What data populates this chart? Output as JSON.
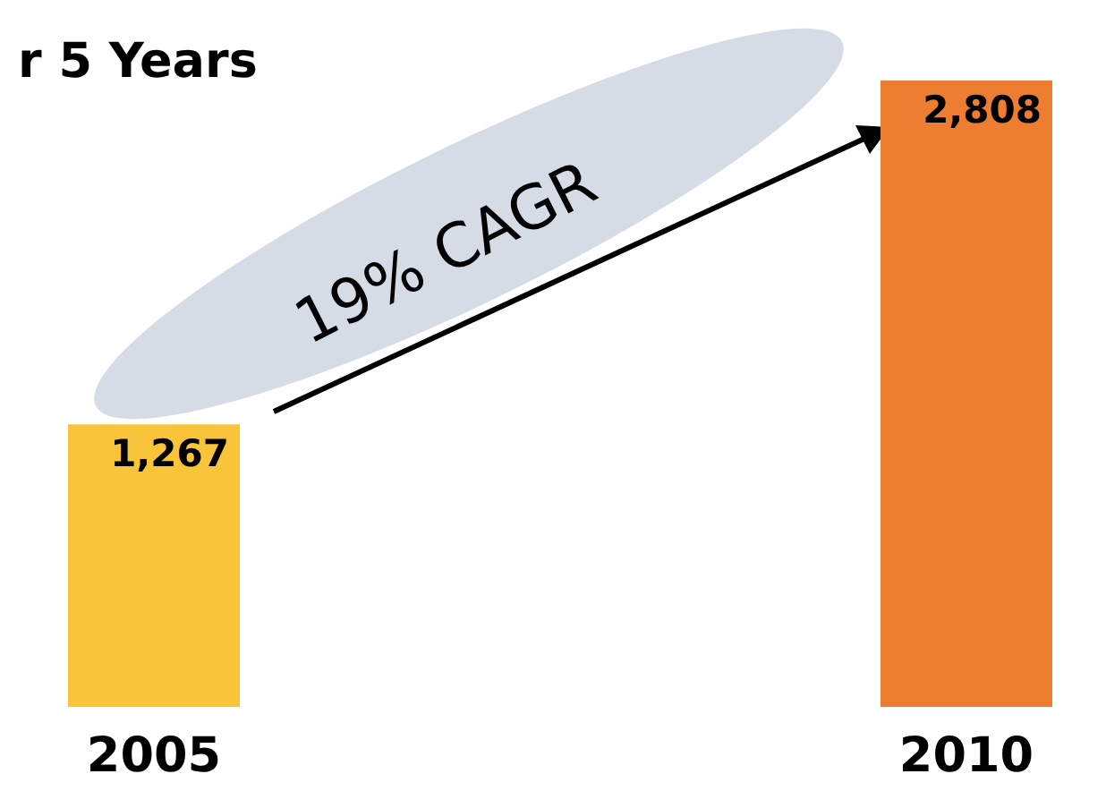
{
  "chart_data": {
    "type": "bar",
    "title": "r 5 Years",
    "categories": [
      "2005",
      "2010"
    ],
    "values": [
      1267,
      2808
    ],
    "colors": [
      "#f8c43a",
      "#ed7d31"
    ],
    "value_labels": [
      "1,267",
      "2,808"
    ],
    "tick_labels": "x",
    "annotations": [
      "19% CAGR"
    ]
  }
}
